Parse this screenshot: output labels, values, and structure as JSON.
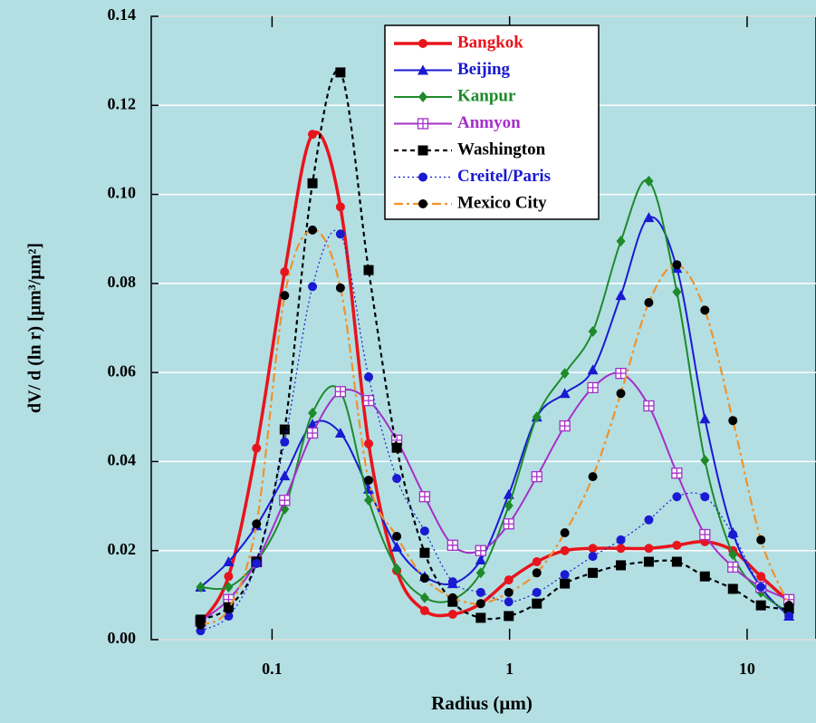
{
  "chart_data": {
    "type": "line",
    "x_label": "Radius (μm)",
    "y_label": "dV/ d (ln r)  [μm³/μm²]",
    "x": [
      0.05,
      0.0656,
      0.086,
      0.113,
      0.148,
      0.194,
      0.255,
      0.335,
      0.439,
      0.576,
      0.756,
      0.992,
      1.302,
      1.708,
      2.241,
      2.94,
      3.857,
      5.061,
      6.641,
      8.713,
      11.432,
      15.0
    ],
    "x_log": true,
    "xlim": [
      0.031,
      19.5
    ],
    "xticks": [
      0.1,
      1,
      10
    ],
    "ylim": [
      0,
      0.14
    ],
    "yticks": [
      {
        "value": 0,
        "label": "0.00"
      },
      {
        "value": 0.02,
        "label": "0.02"
      },
      {
        "value": 0.04,
        "label": "0.04"
      },
      {
        "value": 0.06,
        "label": "0.06"
      },
      {
        "value": 0.08,
        "label": "0.08"
      },
      {
        "value": 0.1,
        "label": "0.10"
      },
      {
        "value": 0.12,
        "label": "0.12"
      },
      {
        "value": 0.14,
        "label": "0.14"
      }
    ],
    "grid": true,
    "legend": "top-center",
    "series": [
      {
        "name": "Bangkok",
        "color": "#e8141c",
        "marker_color": "#e8141c",
        "marker": "circle",
        "line_style": "solid-thick",
        "values": [
          0.0037,
          0.0142,
          0.043,
          0.0826,
          0.1135,
          0.0972,
          0.044,
          0.0155,
          0.0065,
          0.0057,
          0.0081,
          0.0134,
          0.0175,
          0.02,
          0.0205,
          0.0205,
          0.0205,
          0.0212,
          0.022,
          0.02,
          0.0142,
          0.0085
        ]
      },
      {
        "name": "Beijing",
        "color": "#1a1ad2",
        "marker_color": "#1a1ad2",
        "marker": "triangle",
        "line_style": "solid",
        "values": [
          0.0118,
          0.0175,
          0.0256,
          0.0368,
          0.0484,
          0.0464,
          0.0338,
          0.0208,
          0.0142,
          0.0126,
          0.0179,
          0.0326,
          0.05,
          0.0553,
          0.0606,
          0.0773,
          0.0948,
          0.0834,
          0.0496,
          0.024,
          0.0118,
          0.0053
        ]
      },
      {
        "name": "Kanpur",
        "color": "#1e8a2a",
        "marker_color": "#1e8a2a",
        "marker": "diamond",
        "line_style": "solid",
        "values": [
          0.0118,
          0.0118,
          0.0175,
          0.0293,
          0.0509,
          0.0557,
          0.0313,
          0.0159,
          0.0094,
          0.009,
          0.015,
          0.0301,
          0.05,
          0.0598,
          0.0692,
          0.0895,
          0.103,
          0.0781,
          0.0403,
          0.0191,
          0.0106,
          0.0061
        ]
      },
      {
        "name": "Anmyon",
        "color": "#a52fc8",
        "marker_color": "#a52fc8",
        "marker": "square-plus",
        "line_style": "solid",
        "values": [
          0.0041,
          0.009,
          0.0175,
          0.0313,
          0.0464,
          0.0557,
          0.0537,
          0.0448,
          0.0321,
          0.0212,
          0.02,
          0.026,
          0.0366,
          0.048,
          0.0566,
          0.0598,
          0.0525,
          0.0374,
          0.0236,
          0.0163,
          0.0118,
          0.009
        ]
      },
      {
        "name": "Washington",
        "color": "#000000",
        "marker_color": "#000000",
        "marker": "square",
        "line_style": "dashed",
        "values": [
          0.0045,
          0.0073,
          0.0175,
          0.0472,
          0.1025,
          0.1274,
          0.083,
          0.0431,
          0.0195,
          0.0085,
          0.0049,
          0.0053,
          0.0081,
          0.0126,
          0.015,
          0.0167,
          0.0175,
          0.0175,
          0.0142,
          0.0114,
          0.0077,
          0.0069
        ]
      },
      {
        "name": "Creitel/Paris",
        "color": "#1a1ad2",
        "marker_color": "#1a1ad2",
        "marker": "circle",
        "line_style": "dotted",
        "values": [
          0.002,
          0.0053,
          0.0171,
          0.0444,
          0.0793,
          0.0911,
          0.059,
          0.0362,
          0.0244,
          0.013,
          0.0106,
          0.0085,
          0.0106,
          0.0146,
          0.0187,
          0.0224,
          0.0269,
          0.0321,
          0.0321,
          0.0236,
          0.0118,
          0.0053
        ]
      },
      {
        "name": "Mexico City",
        "color": "#f0922a",
        "marker_color": "#000000",
        "marker": "circle",
        "line_style": "dashdot",
        "values": [
          0.0033,
          0.0069,
          0.026,
          0.0773,
          0.092,
          0.079,
          0.0358,
          0.0232,
          0.0138,
          0.0094,
          0.0081,
          0.0106,
          0.015,
          0.024,
          0.0366,
          0.0553,
          0.0757,
          0.0842,
          0.074,
          0.0492,
          0.0224,
          0.0077
        ]
      }
    ]
  }
}
